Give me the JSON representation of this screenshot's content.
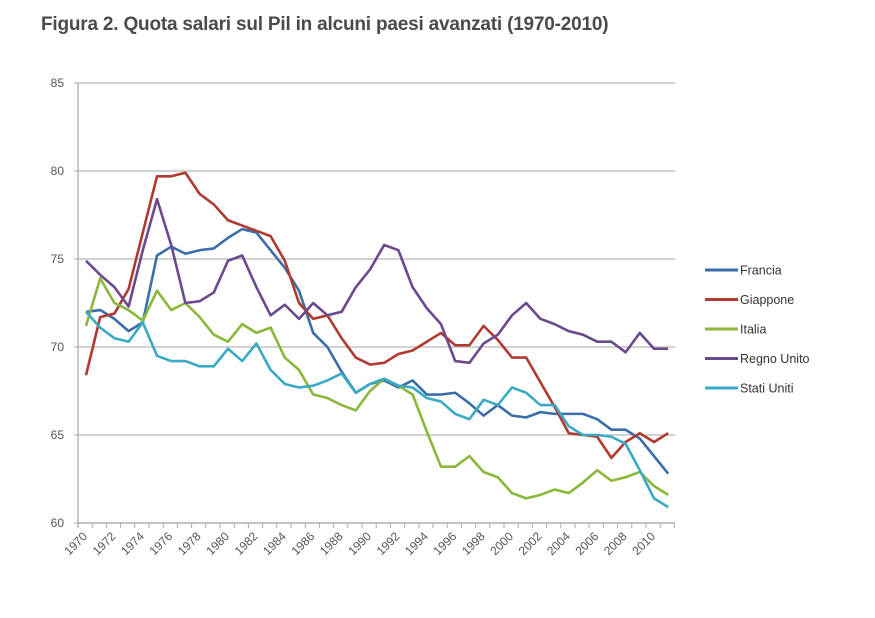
{
  "title": "Figura 2. Quota salari sul Pil in alcuni paesi avanzati (1970-2010)",
  "chart_data": {
    "type": "line",
    "title": "Figura 2. Quota salari sul Pil in alcuni paesi avanzati (1970-2010)",
    "xlabel": "",
    "ylabel": "",
    "ylim": [
      60,
      85
    ],
    "yticks": [
      60,
      65,
      70,
      75,
      80,
      85
    ],
    "xlim": [
      1970,
      2011
    ],
    "xtick_labels": [
      "1970",
      "1972",
      "1974",
      "1976",
      "1978",
      "1980",
      "1982",
      "1984",
      "1986",
      "1988",
      "1990",
      "1992",
      "1994",
      "1996",
      "1998",
      "2000",
      "2002",
      "2004",
      "2006",
      "2008",
      "2010"
    ],
    "grid": "horizontal",
    "legend_position": "right",
    "x": [
      1970,
      1971,
      1972,
      1973,
      1974,
      1975,
      1976,
      1977,
      1978,
      1979,
      1980,
      1981,
      1982,
      1983,
      1984,
      1985,
      1986,
      1987,
      1988,
      1989,
      1990,
      1991,
      1992,
      1993,
      1994,
      1995,
      1996,
      1997,
      1998,
      1999,
      2000,
      2001,
      2002,
      2003,
      2004,
      2005,
      2006,
      2007,
      2008,
      2009,
      2010,
      2011
    ],
    "series": [
      {
        "name": "Francia",
        "color": "#3a6ea8",
        "values": [
          72.0,
          72.1,
          71.6,
          70.9,
          71.4,
          75.2,
          75.7,
          75.3,
          75.5,
          75.6,
          76.2,
          76.7,
          76.5,
          75.5,
          74.5,
          73.2,
          70.8,
          70.0,
          68.6,
          67.4,
          67.9,
          68.1,
          67.7,
          68.1,
          67.3,
          67.3,
          67.4,
          66.8,
          66.1,
          66.7,
          66.1,
          66.0,
          66.3,
          66.2,
          66.2,
          66.2,
          65.9,
          65.3,
          65.3,
          64.8,
          63.8,
          62.8
        ]
      },
      {
        "name": "Giappone",
        "color": "#b03a32",
        "values": [
          68.4,
          71.7,
          71.9,
          73.3,
          76.5,
          79.7,
          79.7,
          79.9,
          78.7,
          78.1,
          77.2,
          76.9,
          76.6,
          76.3,
          74.9,
          72.5,
          71.6,
          71.8,
          70.5,
          69.4,
          69.0,
          69.1,
          69.6,
          69.8,
          70.3,
          70.8,
          70.1,
          70.1,
          71.2,
          70.4,
          69.4,
          69.4,
          68.0,
          66.6,
          65.1,
          65.0,
          64.9,
          63.7,
          64.6,
          65.1,
          64.6,
          65.1
        ]
      },
      {
        "name": "Italia",
        "color": "#8bb73a",
        "values": [
          71.2,
          73.9,
          72.5,
          72.1,
          71.5,
          73.2,
          72.1,
          72.5,
          71.7,
          70.7,
          70.3,
          71.3,
          70.8,
          71.1,
          69.4,
          68.7,
          67.3,
          67.1,
          66.7,
          66.4,
          67.5,
          68.2,
          67.8,
          67.3,
          65.2,
          63.2,
          63.2,
          63.8,
          62.9,
          62.6,
          61.7,
          61.4,
          61.6,
          61.9,
          61.7,
          62.3,
          63.0,
          62.4,
          62.6,
          62.9,
          62.1,
          61.6
        ]
      },
      {
        "name": "Regno Unito",
        "color": "#6a4a8c",
        "values": [
          74.9,
          74.1,
          73.4,
          72.3,
          75.5,
          78.4,
          75.8,
          72.5,
          72.6,
          73.1,
          74.9,
          75.2,
          73.4,
          71.8,
          72.4,
          71.6,
          72.5,
          71.8,
          72.0,
          73.4,
          74.4,
          75.8,
          75.5,
          73.4,
          72.2,
          71.3,
          69.2,
          69.1,
          70.2,
          70.7,
          71.8,
          72.5,
          71.6,
          71.3,
          70.9,
          70.7,
          70.3,
          70.3,
          69.7,
          70.8,
          69.9,
          69.9
        ]
      },
      {
        "name": "Stati Uniti",
        "color": "#3aaac4",
        "values": [
          72.0,
          71.1,
          70.5,
          70.3,
          71.4,
          69.5,
          69.2,
          69.2,
          68.9,
          68.9,
          69.9,
          69.2,
          70.2,
          68.7,
          67.9,
          67.7,
          67.8,
          68.1,
          68.5,
          67.4,
          67.9,
          68.2,
          67.8,
          67.7,
          67.1,
          66.9,
          66.2,
          65.9,
          67.0,
          66.7,
          67.7,
          67.4,
          66.7,
          66.7,
          65.5,
          65.0,
          65.0,
          64.9,
          64.5,
          63.0,
          61.4,
          60.9
        ]
      }
    ]
  }
}
